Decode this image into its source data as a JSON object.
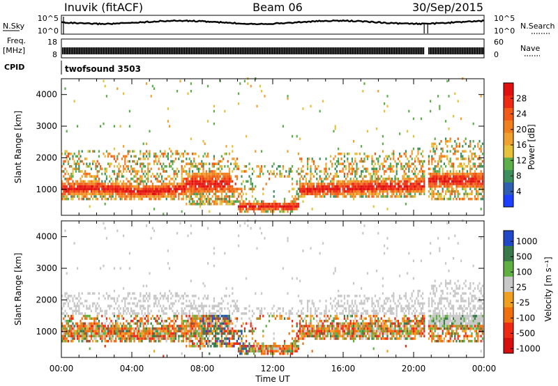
{
  "header": {
    "station": "Inuvik (fitACF)",
    "beam": "Beam 06",
    "date": "30/Sep/2015"
  },
  "strips": {
    "nsky_label": "N.Sky",
    "nsearch_label": "N.Search",
    "nsky_ticks": [
      "10^5",
      "10^0"
    ],
    "nsearch_ticks": [
      "10^5",
      "10^0"
    ],
    "freq_label": "Freq.",
    "freq_unit": "[MHz]",
    "freq_ticks": [
      "18",
      "8"
    ],
    "nave_label": "Nave",
    "nave_ticks": [
      "60",
      "0"
    ],
    "cpid_label": "CPID",
    "cpid_value": "twofsound 3503"
  },
  "axes": {
    "xlabel": "Time UT",
    "ylabel": "Slant Range [km]",
    "x_ticks": [
      "00:00",
      "04:00",
      "08:00",
      "12:00",
      "16:00",
      "20:00",
      "00:00"
    ],
    "y_ticks": [
      "1000",
      "2000",
      "3000",
      "4000"
    ]
  },
  "power_scale": {
    "label": "Power [dB]",
    "ticks": [
      "4",
      "8",
      "12",
      "16",
      "20",
      "24",
      "28"
    ],
    "colors": [
      "#1f3fff",
      "#2f5fb0",
      "#3c8f5c",
      "#5fae4c",
      "#e6c23c",
      "#f0a030",
      "#f07f20",
      "#f25a18",
      "#ef2a14",
      "#e11010"
    ]
  },
  "velocity_scale": {
    "label": "Velocity [m s⁻¹]",
    "ticks": [
      "1000",
      "500",
      "100",
      "25",
      "-25",
      "-100",
      "-500",
      "-1000"
    ],
    "colors": [
      "#2048c8",
      "#3a7a4a",
      "#5fb040",
      "#c8c8c8",
      "#f0a020",
      "#f07010",
      "#ee2a14",
      "#d80f0f"
    ]
  },
  "chart_data": {
    "type": "heatmap",
    "x_range_hours": [
      0,
      24
    ],
    "y_range_km": [
      180,
      4500
    ],
    "gap_hours": [
      20.6,
      20.8
    ],
    "panels": [
      "power",
      "velocity"
    ]
  }
}
